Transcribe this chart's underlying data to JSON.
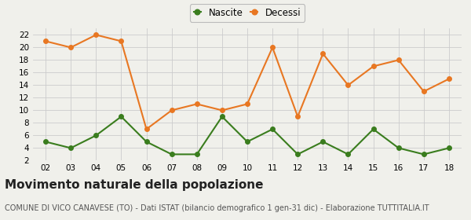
{
  "years": [
    "02",
    "03",
    "04",
    "05",
    "06",
    "07",
    "08",
    "09",
    "10",
    "11",
    "12",
    "13",
    "14",
    "15",
    "16",
    "17",
    "18"
  ],
  "nascite": [
    5,
    4,
    6,
    9,
    5,
    3,
    3,
    9,
    5,
    7,
    3,
    5,
    3,
    7,
    4,
    3,
    4
  ],
  "decessi": [
    21,
    20,
    22,
    21,
    7,
    10,
    11,
    10,
    11,
    20,
    9,
    19,
    14,
    17,
    18,
    13,
    15
  ],
  "nascite_color": "#3a7d1e",
  "decessi_color": "#e87722",
  "background_color": "#f0f0eb",
  "grid_color": "#cccccc",
  "ylim": [
    2,
    23
  ],
  "yticks": [
    2,
    4,
    6,
    8,
    10,
    12,
    14,
    16,
    18,
    20,
    22
  ],
  "title": "Movimento naturale della popolazione",
  "subtitle": "COMUNE DI VICO CANAVESE (TO) - Dati ISTAT (bilancio demografico 1 gen-31 dic) - Elaborazione TUTTITALIA.IT",
  "legend_nascite": "Nascite",
  "legend_decessi": "Decessi",
  "title_fontsize": 11,
  "subtitle_fontsize": 7,
  "marker_size": 4,
  "linewidth": 1.5
}
